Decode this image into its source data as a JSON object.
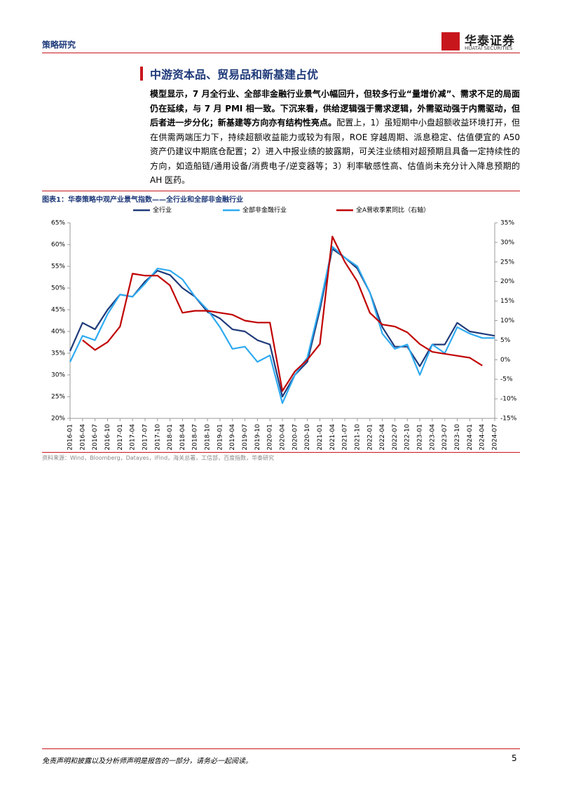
{
  "header": {
    "section": "策略研究",
    "logo": "华泰证券",
    "logo_en": "HUATAI SECURITIES"
  },
  "title": "中游资本品、贸易品和新基建占优",
  "paragraph": {
    "bold": "模型显示，7 月全行业、全部非金融行业景气小幅回升，但较多行业“量增价减”、需求不足的局面仍在延续，与 7 月 PMI 相一致。下沉来看，供给逻辑强于需求逻辑，外需驱动强于内需驱动，但后者进一步分化；新基建等方向亦有结构性亮点。",
    "text": "配置上，1）虽短期中小盘超额收益环境打开，但在供需两端压力下，持续超额收益能力或较为有限，ROE 穿越周期、派息稳定、估值便宜的 A50 资产仍建议中期底仓配置；2）进入中报业绩的披露期，可关注业绩相对超预期且具备一定持续性的方向，如造船链/通用设备/消费电子/逆变器等；3）利率敏感性高、估值尚未充分计入降息预期的 AH 医药。"
  },
  "figure": {
    "label": "图表1：",
    "caption": "华泰策略中观产业景气指数——全行业和全部非金融行业",
    "source": "资料来源：Wind，Bloomberg，Datayes，iFind，海关总署，工信部，百度指数，华泰研究"
  },
  "chart_data": {
    "type": "line",
    "categories": [
      "2016-01",
      "2016-04",
      "2016-07",
      "2016-10",
      "2017-01",
      "2017-04",
      "2017-07",
      "2017-10",
      "2018-01",
      "2018-04",
      "2018-07",
      "2018-10",
      "2019-01",
      "2019-04",
      "2019-07",
      "2019-10",
      "2020-01",
      "2020-04",
      "2020-07",
      "2020-10",
      "2021-01",
      "2021-04",
      "2021-07",
      "2021-10",
      "2022-01",
      "2022-04",
      "2022-07",
      "2022-10",
      "2023-01",
      "2023-04",
      "2023-07",
      "2023-10",
      "2024-01",
      "2024-04",
      "2024-07"
    ],
    "series": [
      {
        "name": "全行业",
        "color": "#1f3a7a",
        "values": [
          35.5,
          42,
          40.5,
          45,
          48.5,
          48,
          51.5,
          54,
          53,
          50,
          48,
          44.5,
          43,
          40.5,
          40,
          38,
          37,
          25,
          30,
          33,
          45,
          59,
          57,
          54.5,
          49,
          41,
          36.5,
          36.5,
          32,
          37,
          37,
          42,
          40,
          39.5,
          39
        ]
      },
      {
        "name": "全部非金融行业",
        "color": "#2eaaf0",
        "values": [
          33,
          39,
          38,
          44,
          48.5,
          48,
          51,
          54.5,
          54,
          52,
          48,
          45,
          41,
          36,
          36.5,
          33,
          34.5,
          23.5,
          30,
          34,
          46,
          59.5,
          57,
          55,
          49,
          39.5,
          36,
          37,
          30,
          37,
          35,
          41,
          39.5,
          38.5,
          38.5
        ]
      },
      {
        "name": "全A营收季累同比（右轴）",
        "color": "#c00000",
        "axis": "y2",
        "values": [
          null,
          5,
          2.5,
          4.5,
          8.5,
          22,
          21.5,
          21.5,
          19,
          12,
          12.5,
          12.5,
          12,
          11.5,
          10,
          9.5,
          9.5,
          -8,
          -3,
          0,
          4,
          31.5,
          25,
          20,
          12,
          9,
          8.5,
          7,
          4,
          2,
          1.5,
          1,
          0.5,
          -1.5,
          null
        ]
      }
    ],
    "ylim": [
      20,
      65
    ],
    "yticks": [
      {
        "value": 20,
        "label": "20%"
      },
      {
        "value": 25,
        "label": "25%"
      },
      {
        "value": 30,
        "label": "30%"
      },
      {
        "value": 35,
        "label": "35%"
      },
      {
        "value": 40,
        "label": "40%"
      },
      {
        "value": 45,
        "label": "45%"
      },
      {
        "value": 50,
        "label": "50%"
      },
      {
        "value": 55,
        "label": "55%"
      },
      {
        "value": 60,
        "label": "60%"
      },
      {
        "value": 65,
        "label": "65%"
      }
    ],
    "y2lim": [
      -15,
      35
    ],
    "y2ticks": [
      {
        "value": -15,
        "label": "-15%"
      },
      {
        "value": -10,
        "label": "-10%"
      },
      {
        "value": -5,
        "label": "-5%"
      },
      {
        "value": 0,
        "label": "0%"
      },
      {
        "value": 5,
        "label": "5%"
      },
      {
        "value": 10,
        "label": "10%"
      },
      {
        "value": 15,
        "label": "15%"
      },
      {
        "value": 20,
        "label": "20%"
      },
      {
        "value": 25,
        "label": "25%"
      },
      {
        "value": 30,
        "label": "30%"
      },
      {
        "value": 35,
        "label": "35%"
      }
    ],
    "grid": false,
    "legend": "top"
  },
  "footer": {
    "disclaimer": "免责声明和披露以及分析师声明是报告的一部分，请务必一起阅读。",
    "page": 5
  }
}
